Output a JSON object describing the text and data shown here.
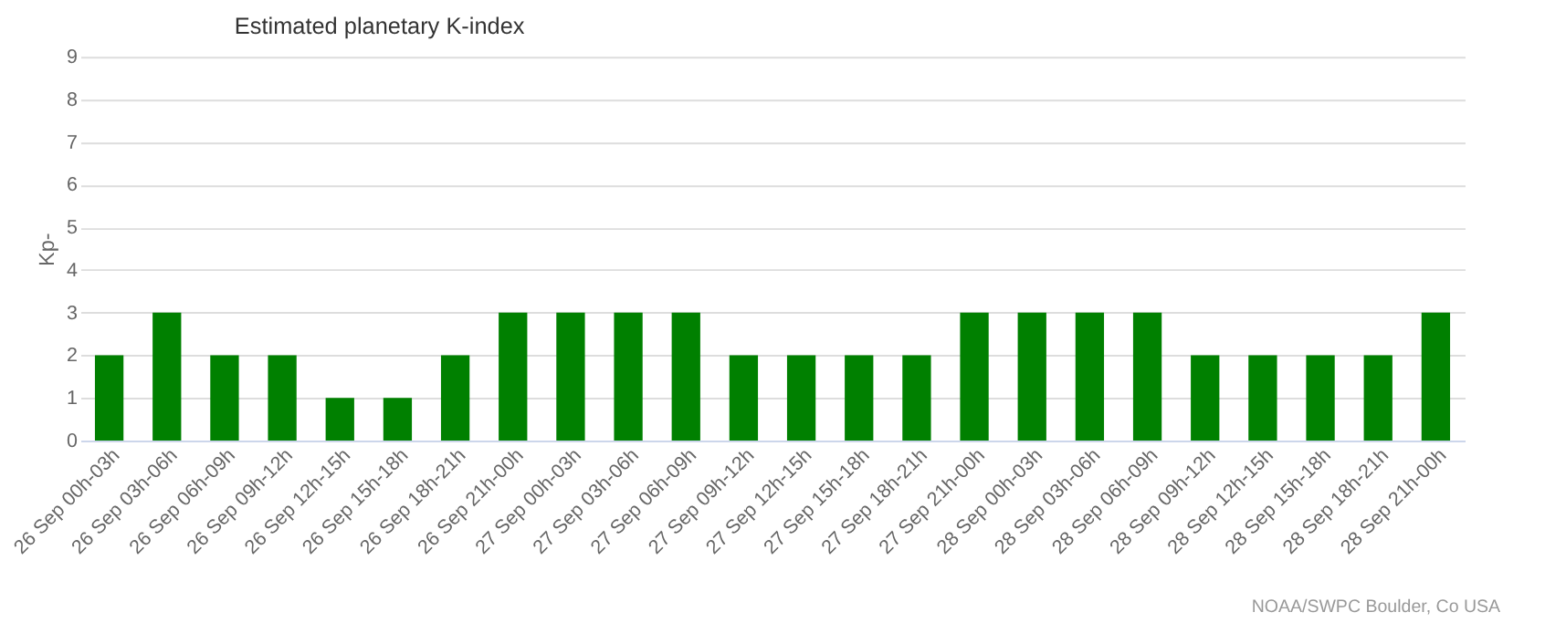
{
  "chart_data": {
    "type": "bar",
    "title": "Estimated planetary K-index",
    "ylabel": "Kp-",
    "categories": [
      "26 Sep 00h-03h",
      "26 Sep 03h-06h",
      "26 Sep 06h-09h",
      "26 Sep 09h-12h",
      "26 Sep 12h-15h",
      "26 Sep 15h-18h",
      "26 Sep 18h-21h",
      "26 Sep 21h-00h",
      "27 Sep 00h-03h",
      "27 Sep 03h-06h",
      "27 Sep 06h-09h",
      "27 Sep 09h-12h",
      "27 Sep 12h-15h",
      "27 Sep 15h-18h",
      "27 Sep 18h-21h",
      "27 Sep 21h-00h",
      "28 Sep 00h-03h",
      "28 Sep 03h-06h",
      "28 Sep 06h-09h",
      "28 Sep 09h-12h",
      "28 Sep 12h-15h",
      "28 Sep 15h-18h",
      "28 Sep 18h-21h",
      "28 Sep 21h-00h"
    ],
    "values": [
      2,
      3,
      2,
      2,
      1,
      1,
      2,
      3,
      3,
      3,
      3,
      2,
      2,
      2,
      2,
      3,
      3,
      3,
      3,
      2,
      2,
      2,
      2,
      3
    ],
    "color": "#008000",
    "ylim": [
      0,
      9
    ],
    "yticks": [
      0,
      1,
      2,
      3,
      4,
      5,
      6,
      7,
      8,
      9
    ],
    "grid": "y",
    "annotations": [
      "NOAA/SWPC Boulder, Co USA"
    ]
  }
}
